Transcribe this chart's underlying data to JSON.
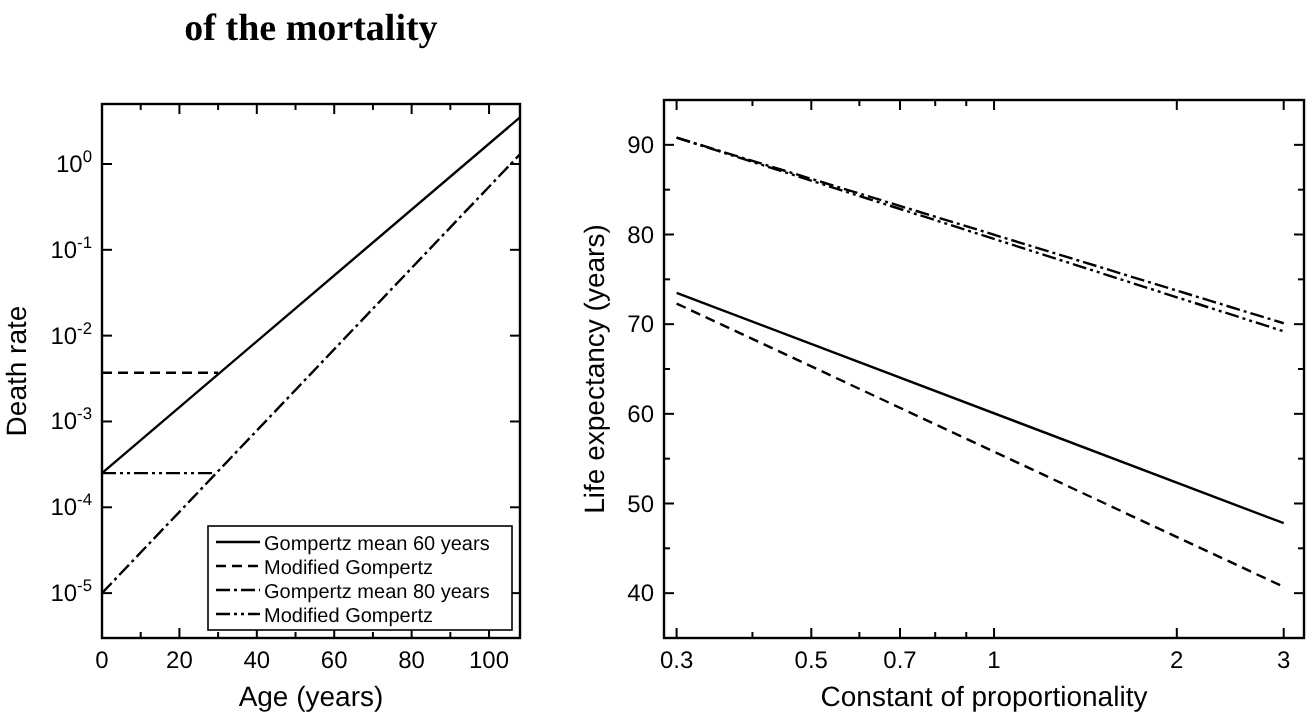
{
  "chart_data": [
    {
      "type": "line",
      "title": "of the mortality",
      "xlabel": "Age (years)",
      "ylabel": "Death rate",
      "log": "y",
      "legend": "bottom right",
      "xlim": [
        0,
        108
      ],
      "xticks": [
        0,
        {
          "value": 10,
          "label": null
        },
        20,
        {
          "value": 30,
          "label": null
        },
        40,
        {
          "value": 50,
          "label": null
        },
        60,
        {
          "value": 70,
          "label": null
        },
        80,
        {
          "value": 90,
          "label": null
        },
        100
      ],
      "ylim": [
        3e-06,
        5
      ],
      "yticks": [
        {
          "value": 1e-05,
          "label": "10$^{-5}$"
        },
        {
          "value": 0.0001,
          "label": "10$^{-4}$"
        },
        {
          "value": 0.001,
          "label": "10$^{-3}$"
        },
        {
          "value": 0.01,
          "label": "10$^{-2}$"
        },
        {
          "value": 0.1,
          "label": "10$^{-1}$"
        },
        {
          "value": 1,
          "label": "10$^{0}$"
        }
      ],
      "series": [
        {
          "name": "Gompertz mean 60 years",
          "color": "#000000",
          "line_style": "solid",
          "x": [
            0,
            108
          ],
          "values": [
            0.00025,
            3.5
          ]
        },
        {
          "name": "Modified Gompertz",
          "color": "#000000",
          "line_style": "dashed",
          "x": [
            0,
            30
          ],
          "values": [
            0.0037,
            0.0037
          ]
        },
        {
          "name": "Gompertz mean 80 years",
          "color": "#000000",
          "line_style": "dashdot",
          "x": [
            0,
            108
          ],
          "values": [
            1e-05,
            1.3
          ]
        },
        {
          "name": "Modified Gompertz",
          "color": "#000000",
          "line_style": "dashdotdot",
          "x": [
            0,
            29
          ],
          "values": [
            0.00025,
            0.00025
          ]
        }
      ]
    },
    {
      "type": "line",
      "xlabel": "Constant of proportionality",
      "ylabel": "Life expectancy (years)",
      "log": "x",
      "xlim": [
        0.286,
        3.24
      ],
      "xticks": [
        0.3,
        {
          "value": 0.4,
          "label": null
        },
        0.5,
        {
          "value": 0.6,
          "label": null
        },
        0.7,
        {
          "value": 0.8,
          "label": null
        },
        {
          "value": 0.9,
          "label": null
        },
        1,
        2,
        3
      ],
      "ylim": [
        35,
        95
      ],
      "yticks": [
        {
          "value": 35,
          "label": null
        },
        40,
        {
          "value": 45,
          "label": null
        },
        50,
        {
          "value": 55,
          "label": null
        },
        60,
        {
          "value": 65,
          "label": null
        },
        70,
        {
          "value": 75,
          "label": null
        },
        80,
        {
          "value": 85,
          "label": null
        },
        90
      ],
      "series": [
        {
          "color": "#000000",
          "line_style": "solid",
          "x": [
            0.3,
            3
          ],
          "values": [
            73.5,
            47.8
          ]
        },
        {
          "color": "#000000",
          "line_style": "dashed",
          "x": [
            0.3,
            3
          ],
          "values": [
            72.3,
            40.7
          ]
        },
        {
          "color": "#000000",
          "line_style": "dashdot",
          "x": [
            0.3,
            3
          ],
          "values": [
            90.8,
            70.1
          ]
        },
        {
          "color": "#000000",
          "line_style": "dashdotdot",
          "x": [
            0.3,
            3
          ],
          "values": [
            90.8,
            69.2
          ]
        }
      ]
    }
  ]
}
